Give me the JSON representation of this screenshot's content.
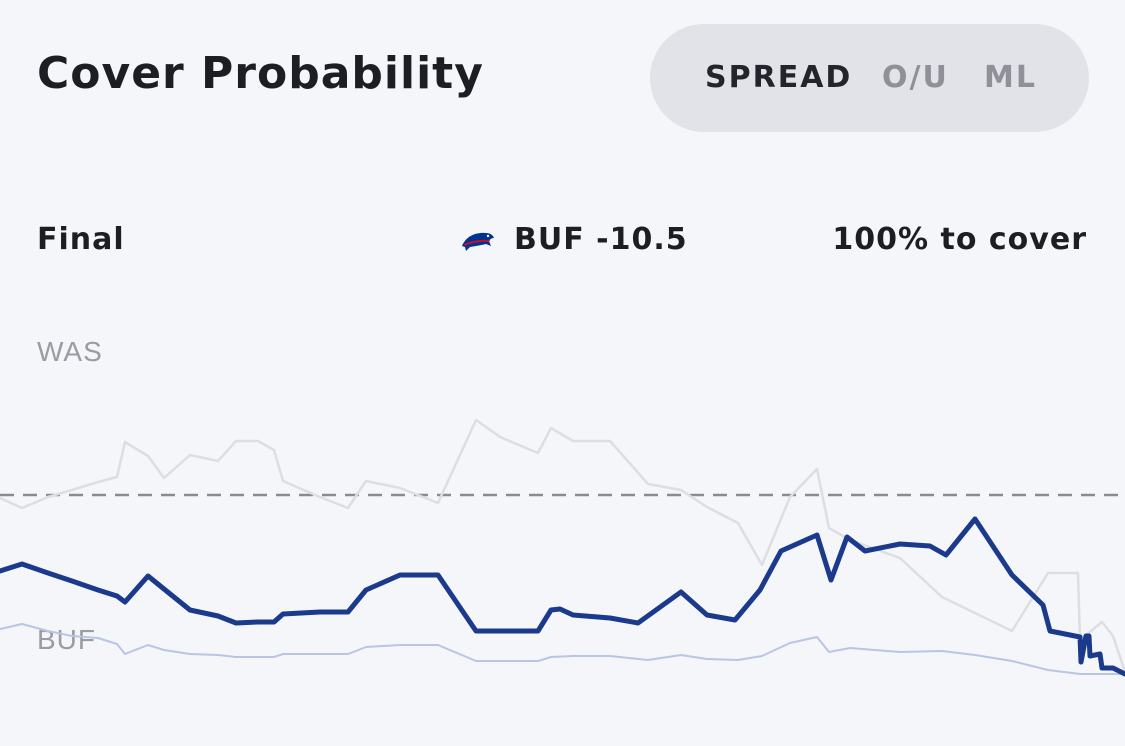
{
  "header": {
    "title": "Cover Probability"
  },
  "toggle": {
    "options": [
      "SPREAD",
      "O/U",
      "ML"
    ],
    "selected": "SPREAD"
  },
  "status": {
    "game_state": "Final",
    "team_line": "BUF -10.5",
    "cover_text": "100% to cover",
    "team_logo_icon": "buffalo-bills-logo-icon"
  },
  "chart_labels": {
    "top_team": "WAS",
    "bottom_team": "BUF"
  },
  "colors": {
    "primary_line": "#1b3a8c",
    "was_line": "#dddee2",
    "buf_line": "#b9c5e3",
    "midline": "#8a8b90",
    "background": "#f5f6fa"
  }
}
